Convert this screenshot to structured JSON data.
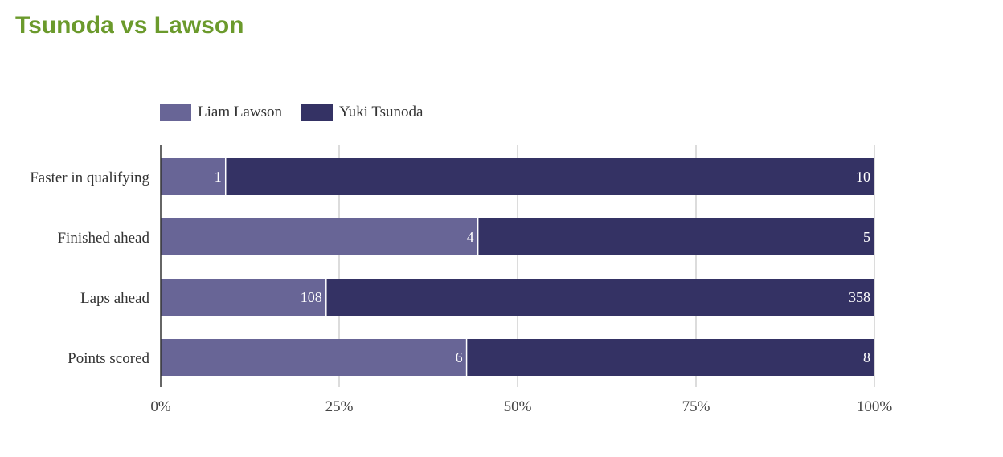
{
  "title": "Tsunoda vs Lawson",
  "colors": {
    "title": "#6b9a2c",
    "lawson": "#686596",
    "tsunoda": "#343264",
    "grid": "#d0d0d0",
    "axis": "#333333"
  },
  "chart_data": {
    "type": "bar",
    "orientation": "horizontal",
    "stacking": "percent",
    "categories": [
      "Faster in qualifying",
      "Finished ahead",
      "Laps ahead",
      "Points scored"
    ],
    "series": [
      {
        "name": "Liam Lawson",
        "values": [
          1,
          4,
          108,
          6
        ]
      },
      {
        "name": "Yuki Tsunoda",
        "values": [
          10,
          5,
          358,
          8
        ]
      }
    ],
    "x_ticks": [
      "0%",
      "25%",
      "50%",
      "75%",
      "100%"
    ],
    "xlim": [
      0,
      100
    ],
    "grid": true,
    "legend_position": "top-left"
  }
}
